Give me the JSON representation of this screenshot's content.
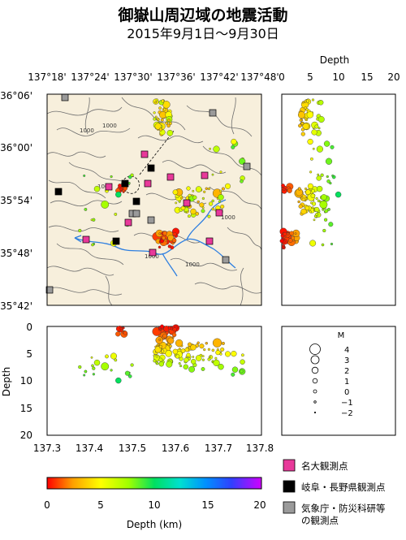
{
  "header": {
    "title": "御嶽山周辺域の地震活動",
    "subtitle": "2015年9月1日～9月30日"
  },
  "map": {
    "lon_ticks": [
      "137°18'",
      "137°24'",
      "137°30'",
      "137°36'",
      "137°42'",
      "137°48'"
    ],
    "lat_ticks": [
      "36°06'",
      "36°00'",
      "35°54'",
      "35°48'",
      "35°42'"
    ],
    "contour_labels": [
      "1000",
      "1000",
      "1000",
      "1000",
      "1000",
      "1000"
    ],
    "land_color": "#f7efdc",
    "river_color": "#2e7fe0"
  },
  "side_section": {
    "title": "Depth",
    "x_ticks": [
      "0",
      "5",
      "10",
      "15",
      "20"
    ]
  },
  "bottom_section": {
    "ylabel": "Depth",
    "y_ticks": [
      "0",
      "5",
      "10",
      "15",
      "20"
    ],
    "x_ticks": [
      "137.3",
      "137.4",
      "137.5",
      "137.6",
      "137.7",
      "137.8"
    ]
  },
  "magnitude_legend": {
    "title": "M",
    "labels": [
      "4",
      "3",
      "2",
      "1",
      "0",
      "−1",
      "−2"
    ]
  },
  "station_legend": [
    {
      "label": "名大観測点",
      "color": "#e8399a"
    },
    {
      "label": "岐阜・長野県観測点",
      "color": "#000000"
    },
    {
      "label": "気象庁・防災科研等",
      "color": "#9a9a9a"
    },
    {
      "label": "の観測点",
      "color": ""
    }
  ],
  "colorbar": {
    "ticks": [
      "0",
      "5",
      "10",
      "15",
      "20"
    ],
    "label": "Depth (km)",
    "gradient": [
      "#ff0000",
      "#ffa000",
      "#ffff00",
      "#a0ff00",
      "#00e060",
      "#00e0d0",
      "#0090ff",
      "#2040ff",
      "#8020ff",
      "#d000ff"
    ]
  }
}
